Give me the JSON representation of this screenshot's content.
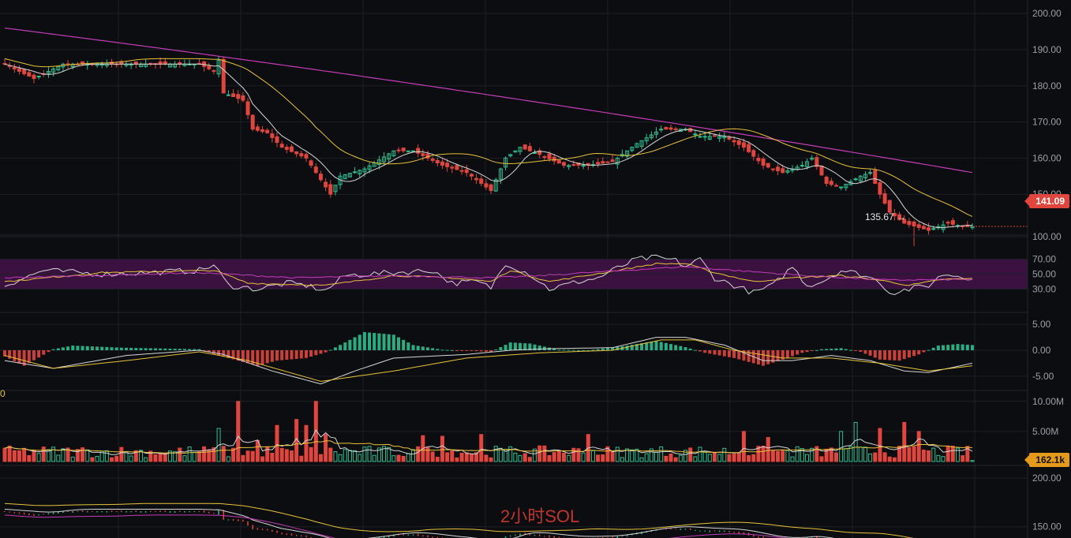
{
  "title": "2小时SOL",
  "colors": {
    "background": "#0c0d10",
    "grid": "#1d2026",
    "up": "#2fbf8f",
    "down": "#e0463e",
    "ma_fast": "#d6d6d6",
    "ma_slow": "#e8c23a",
    "ma_long": "#c43cb8",
    "rsi_band": "#3b1140"
  },
  "price_tag": "141.09",
  "low_marker": "135.67",
  "volume_tag": "162.1k",
  "side_value": "0",
  "chart_data": [
    {
      "type": "candlestick",
      "panel": "price",
      "ylim": [
        140,
        202
      ],
      "yticks": [
        "200.00",
        "190.00",
        "180.00",
        "170.00",
        "160.00",
        "150.00"
      ],
      "x_count": 200,
      "close_anchors": [
        [
          0,
          186
        ],
        [
          6,
          182
        ],
        [
          12,
          186
        ],
        [
          28,
          186
        ],
        [
          40,
          186
        ],
        [
          43,
          184
        ],
        [
          44,
          187
        ],
        [
          45,
          178
        ],
        [
          49,
          176
        ],
        [
          51,
          168
        ],
        [
          54,
          167
        ],
        [
          57,
          163
        ],
        [
          62,
          160
        ],
        [
          65,
          154
        ],
        [
          67,
          150
        ],
        [
          69,
          155
        ],
        [
          74,
          157
        ],
        [
          80,
          162
        ],
        [
          84,
          162
        ],
        [
          90,
          158
        ],
        [
          95,
          156
        ],
        [
          98,
          153
        ],
        [
          100,
          151
        ],
        [
          103,
          160
        ],
        [
          106,
          163
        ],
        [
          110,
          161
        ],
        [
          115,
          158
        ],
        [
          120,
          158
        ],
        [
          125,
          159
        ],
        [
          130,
          164
        ],
        [
          135,
          168
        ],
        [
          140,
          168
        ],
        [
          143,
          166
        ],
        [
          148,
          166
        ],
        [
          152,
          163
        ],
        [
          156,
          158
        ],
        [
          160,
          156
        ],
        [
          164,
          158
        ],
        [
          166,
          160
        ],
        [
          169,
          153
        ],
        [
          172,
          152
        ],
        [
          176,
          155
        ],
        [
          178,
          156
        ],
        [
          180,
          150
        ],
        [
          182,
          145
        ],
        [
          185,
          142
        ],
        [
          190,
          140
        ],
        [
          194,
          142
        ],
        [
          197,
          141
        ],
        [
          199,
          141.09
        ]
      ],
      "low_point": {
        "x": 187,
        "value": 135.67
      },
      "last": 141.09,
      "ma_fast_period": 7,
      "ma_slow_period": 20,
      "ma_long_level": {
        "start": 196,
        "end": 156
      },
      "cur_price": 141.09
    },
    {
      "type": "line",
      "panel": "rsi",
      "ylim": [
        0,
        100
      ],
      "yticks": [
        "100.00",
        "70.00",
        "50.00",
        "30.00"
      ],
      "band": [
        30,
        70
      ],
      "series": [
        {
          "anchors": [
            [
              0,
              35
            ],
            [
              8,
              55
            ],
            [
              20,
              50
            ],
            [
              30,
              52
            ],
            [
              40,
              55
            ],
            [
              43,
              62
            ],
            [
              46,
              35
            ],
            [
              52,
              30
            ],
            [
              58,
              38
            ],
            [
              62,
              35
            ],
            [
              66,
              28
            ],
            [
              70,
              48
            ],
            [
              80,
              52
            ],
            [
              88,
              55
            ],
            [
              92,
              38
            ],
            [
              97,
              40
            ],
            [
              100,
              32
            ],
            [
              103,
              65
            ],
            [
              108,
              50
            ],
            [
              112,
              30
            ],
            [
              118,
              40
            ],
            [
              122,
              45
            ],
            [
              126,
              58
            ],
            [
              130,
              70
            ],
            [
              134,
              72
            ],
            [
              138,
              68
            ],
            [
              140,
              60
            ],
            [
              143,
              70
            ],
            [
              146,
              45
            ],
            [
              150,
              35
            ],
            [
              154,
              25
            ],
            [
              158,
              35
            ],
            [
              162,
              60
            ],
            [
              165,
              35
            ],
            [
              168,
              40
            ],
            [
              172,
              55
            ],
            [
              176,
              50
            ],
            [
              180,
              40
            ],
            [
              182,
              25
            ],
            [
              186,
              30
            ],
            [
              190,
              35
            ],
            [
              193,
              50
            ],
            [
              196,
              48
            ],
            [
              199,
              45
            ]
          ]
        },
        {
          "anchors": [
            [
              0,
              40
            ],
            [
              20,
              52
            ],
            [
              43,
              55
            ],
            [
              50,
              38
            ],
            [
              66,
              35
            ],
            [
              80,
              48
            ],
            [
              92,
              45
            ],
            [
              100,
              40
            ],
            [
              104,
              55
            ],
            [
              112,
              40
            ],
            [
              126,
              55
            ],
            [
              134,
              64
            ],
            [
              140,
              64
            ],
            [
              146,
              52
            ],
            [
              154,
              40
            ],
            [
              162,
              45
            ],
            [
              172,
              48
            ],
            [
              180,
              42
            ],
            [
              186,
              35
            ],
            [
              193,
              43
            ],
            [
              199,
              44
            ]
          ]
        },
        {
          "anchors": [
            [
              0,
              45
            ],
            [
              40,
              52
            ],
            [
              60,
              45
            ],
            [
              80,
              48
            ],
            [
              100,
              45
            ],
            [
              110,
              48
            ],
            [
              130,
              56
            ],
            [
              140,
              60
            ],
            [
              150,
              55
            ],
            [
              165,
              48
            ],
            [
              182,
              42
            ],
            [
              199,
              43
            ]
          ]
        }
      ]
    },
    {
      "type": "bar+line",
      "panel": "macd",
      "ylim": [
        -7,
        7
      ],
      "yticks": [
        "5.00",
        "0.00",
        "-5.00"
      ],
      "histogram_anchors": [
        [
          0,
          -1.2
        ],
        [
          4,
          -3
        ],
        [
          10,
          0.2
        ],
        [
          14,
          0.9
        ],
        [
          24,
          0.5
        ],
        [
          40,
          0.2
        ],
        [
          44,
          -1
        ],
        [
          52,
          -3
        ],
        [
          56,
          -2
        ],
        [
          62,
          -1.5
        ],
        [
          66,
          -0.4
        ],
        [
          70,
          1.5
        ],
        [
          74,
          3.5
        ],
        [
          80,
          3
        ],
        [
          84,
          1
        ],
        [
          90,
          0.1
        ],
        [
          100,
          -0.3
        ],
        [
          104,
          1.5
        ],
        [
          108,
          1.3
        ],
        [
          114,
          0.1
        ],
        [
          120,
          0
        ],
        [
          128,
          0.9
        ],
        [
          134,
          1.8
        ],
        [
          140,
          0.6
        ],
        [
          144,
          -0.5
        ],
        [
          150,
          -1.5
        ],
        [
          156,
          -3
        ],
        [
          160,
          -1.8
        ],
        [
          164,
          -0.5
        ],
        [
          168,
          0.2
        ],
        [
          172,
          0.4
        ],
        [
          176,
          -0.3
        ],
        [
          180,
          -1.8
        ],
        [
          184,
          -2
        ],
        [
          188,
          -0.8
        ],
        [
          192,
          0.9
        ],
        [
          196,
          1.2
        ],
        [
          199,
          1
        ]
      ],
      "series": [
        {
          "anchors": [
            [
              0,
              -2
            ],
            [
              10,
              -3.5
            ],
            [
              25,
              -1
            ],
            [
              40,
              0
            ],
            [
              45,
              -0.8
            ],
            [
              55,
              -4
            ],
            [
              65,
              -6.5
            ],
            [
              72,
              -4
            ],
            [
              80,
              -1.5
            ],
            [
              95,
              -0.8
            ],
            [
              104,
              0
            ],
            [
              112,
              0.3
            ],
            [
              125,
              0.5
            ],
            [
              134,
              2.5
            ],
            [
              140,
              2.5
            ],
            [
              148,
              1
            ],
            [
              156,
              -2
            ],
            [
              162,
              -2
            ],
            [
              170,
              -1
            ],
            [
              178,
              -2
            ],
            [
              185,
              -4
            ],
            [
              190,
              -4.3
            ],
            [
              199,
              -2.5
            ]
          ]
        },
        {
          "anchors": [
            [
              0,
              -1
            ],
            [
              10,
              -3.5
            ],
            [
              25,
              -2
            ],
            [
              40,
              -0.3
            ],
            [
              50,
              -2
            ],
            [
              65,
              -6
            ],
            [
              80,
              -4
            ],
            [
              95,
              -1.5
            ],
            [
              110,
              -0.5
            ],
            [
              125,
              0
            ],
            [
              135,
              2
            ],
            [
              142,
              2
            ],
            [
              150,
              0
            ],
            [
              160,
              -1.5
            ],
            [
              170,
              -1.5
            ],
            [
              180,
              -2.5
            ],
            [
              190,
              -4
            ],
            [
              199,
              -3
            ]
          ]
        }
      ]
    },
    {
      "type": "bar+line",
      "panel": "volume",
      "ylim": [
        0,
        10500000
      ],
      "yticks": [
        "10.00M",
        "5.00M"
      ],
      "peaks": [
        [
          44,
          5.5
        ],
        [
          48,
          10
        ],
        [
          52,
          3.5
        ],
        [
          56,
          6
        ],
        [
          60,
          7
        ],
        [
          62,
          6
        ],
        [
          64,
          10
        ],
        [
          66,
          4.5
        ],
        [
          70,
          2
        ],
        [
          86,
          4.3
        ],
        [
          90,
          4.2
        ],
        [
          98,
          4.5
        ],
        [
          120,
          4.5
        ],
        [
          152,
          5
        ],
        [
          157,
          4
        ],
        [
          172,
          5
        ],
        [
          175,
          6.5
        ],
        [
          180,
          5.5
        ],
        [
          185,
          6.5
        ],
        [
          188,
          5
        ]
      ],
      "last": 162100,
      "series": [
        {
          "period": 5
        },
        {
          "period": 20
        }
      ]
    },
    {
      "type": "line",
      "panel": "mini",
      "ylim": [
        140,
        205
      ],
      "yticks": [
        "200.00",
        "150.00"
      ],
      "note": "compressed overview of price panel"
    }
  ]
}
